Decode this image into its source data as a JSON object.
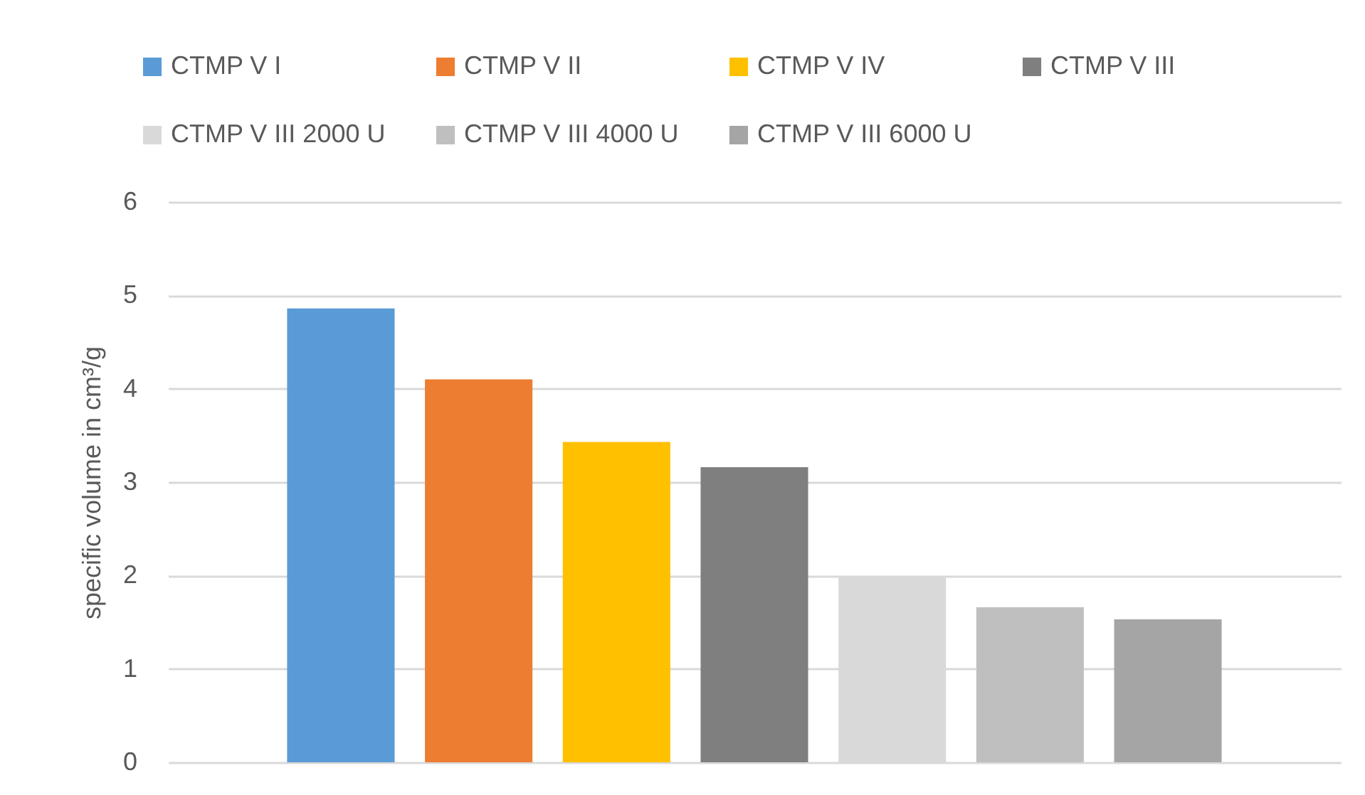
{
  "chart_data": {
    "type": "bar",
    "ylabel": "specific volume in cm³/g",
    "categories": [
      null
    ],
    "series": [
      {
        "name": "CTMP V I",
        "color": "#5b9bd5",
        "values": [
          4.86
        ]
      },
      {
        "name": "CTMP V II",
        "color": "#ed7d31",
        "values": [
          4.1
        ]
      },
      {
        "name": "CTMP V IV",
        "color": "#ffc000",
        "values": [
          3.43
        ]
      },
      {
        "name": "CTMP V III",
        "color": "#7f7f7f",
        "values": [
          3.16
        ]
      },
      {
        "name": "CTMP V III 2000 U",
        "color": "#d9d9d9",
        "values": [
          1.99
        ]
      },
      {
        "name": "CTMP V III 4000 U",
        "color": "#bfbfbf",
        "values": [
          1.66
        ]
      },
      {
        "name": "CTMP V III 6000 U",
        "color": "#a5a5a5",
        "values": [
          1.53
        ]
      }
    ],
    "ylim": [
      0,
      6
    ],
    "yticks": [
      0,
      1,
      2,
      3,
      4,
      5,
      6
    ],
    "grid": "y",
    "legend": "top",
    "tick_labels": "y"
  }
}
